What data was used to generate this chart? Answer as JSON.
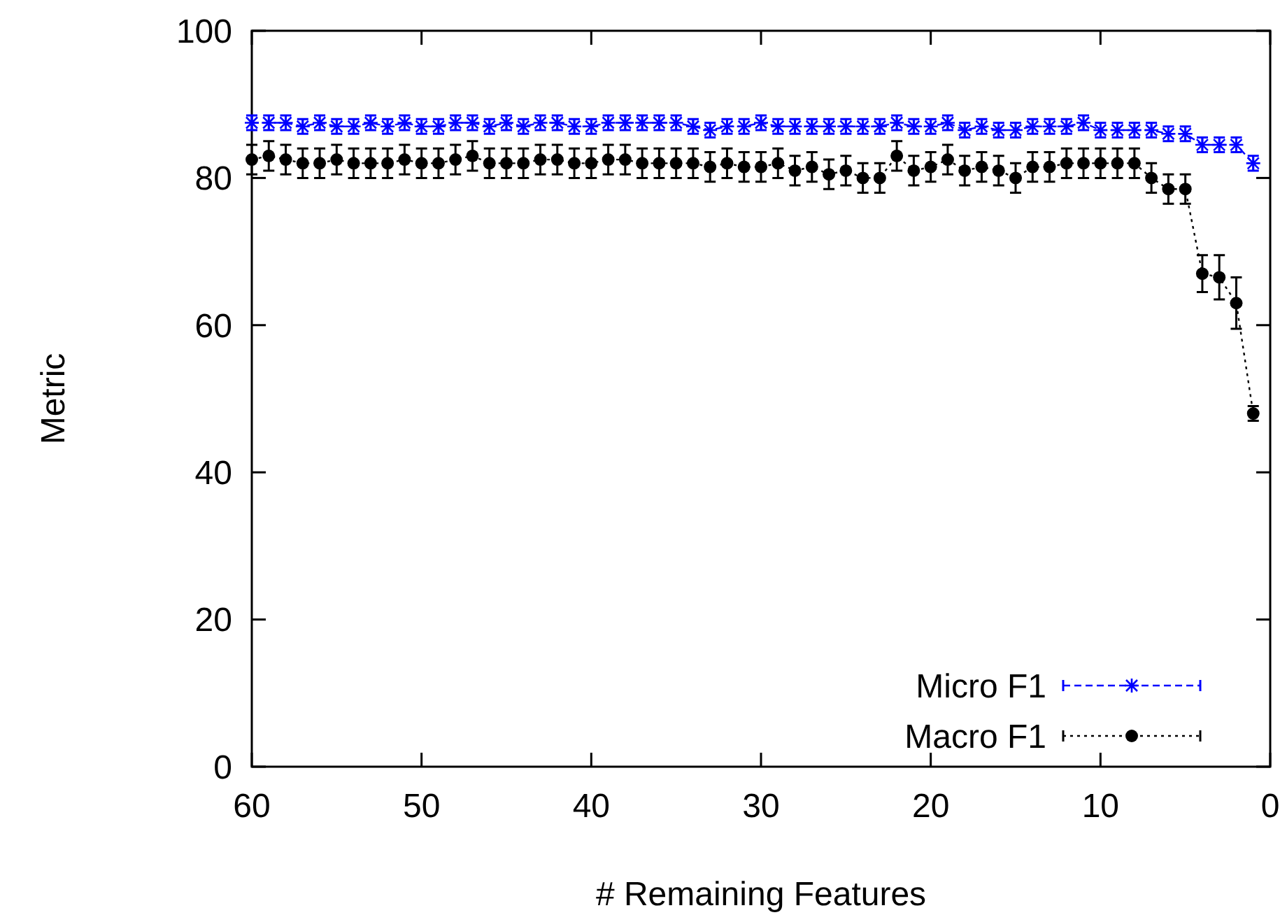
{
  "chart_data": {
    "type": "line",
    "xlabel": "# Remaining Features",
    "ylabel": "Metric",
    "x": [
      60,
      59,
      58,
      57,
      56,
      55,
      54,
      53,
      52,
      51,
      50,
      49,
      48,
      47,
      46,
      45,
      44,
      43,
      42,
      41,
      40,
      39,
      38,
      37,
      36,
      35,
      34,
      33,
      32,
      31,
      30,
      29,
      28,
      27,
      26,
      25,
      24,
      23,
      22,
      21,
      20,
      19,
      18,
      17,
      16,
      15,
      14,
      13,
      12,
      11,
      10,
      9,
      8,
      7,
      6,
      5,
      4,
      3,
      2,
      1
    ],
    "xlim": [
      60,
      0
    ],
    "xticks": [
      60,
      50,
      40,
      30,
      20,
      10,
      0
    ],
    "ylim": [
      0,
      100
    ],
    "yticks": [
      0,
      20,
      40,
      60,
      80,
      100
    ],
    "grid": false,
    "legend": "bottom right",
    "series": [
      {
        "name": "Micro F1",
        "color": "#0000ff",
        "marker": "cross",
        "line_style": "dashed",
        "values": [
          87.5,
          87.5,
          87.5,
          87,
          87.5,
          87,
          87,
          87.5,
          87,
          87.5,
          87,
          87,
          87.5,
          87.5,
          87,
          87.5,
          87,
          87.5,
          87.5,
          87,
          87,
          87.5,
          87.5,
          87.5,
          87.5,
          87.5,
          87,
          86.5,
          87,
          87,
          87.5,
          87,
          87,
          87,
          87,
          87,
          87,
          87,
          87.5,
          87,
          87,
          87.5,
          86.5,
          87,
          86.5,
          86.5,
          87,
          87,
          87,
          87.5,
          86.5,
          86.5,
          86.5,
          86.5,
          86,
          86,
          84.5,
          84.5,
          84.5,
          82
        ],
        "errors": [
          1,
          1,
          1,
          1,
          1,
          1,
          1,
          1,
          1,
          1,
          1,
          1,
          1,
          1,
          1,
          1,
          1,
          1,
          1,
          1,
          1,
          1,
          1,
          1,
          1,
          1,
          1,
          1,
          1,
          1,
          1,
          1,
          1,
          1,
          1,
          1,
          1,
          1,
          1,
          1,
          1,
          1,
          1,
          1,
          1,
          1,
          1,
          1,
          1,
          1,
          1,
          1,
          1,
          1,
          1,
          1,
          1,
          1,
          1,
          1
        ]
      },
      {
        "name": "Macro F1",
        "color": "#000000",
        "marker": "circle",
        "line_style": "dotted",
        "values": [
          82.5,
          83,
          82.5,
          82,
          82,
          82.5,
          82,
          82,
          82,
          82.5,
          82,
          82,
          82.5,
          83,
          82,
          82,
          82,
          82.5,
          82.5,
          82,
          82,
          82.5,
          82.5,
          82,
          82,
          82,
          82,
          81.5,
          82,
          81.5,
          81.5,
          82,
          81,
          81.5,
          80.5,
          81,
          80,
          80,
          83,
          81,
          81.5,
          82.5,
          81,
          81.5,
          81,
          80,
          81.5,
          81.5,
          82,
          82,
          82,
          82,
          82,
          80,
          78.5,
          78.5,
          67,
          66.5,
          63,
          48
        ],
        "errors": [
          2,
          2,
          2,
          2,
          2,
          2,
          2,
          2,
          2,
          2,
          2,
          2,
          2,
          2,
          2,
          2,
          2,
          2,
          2,
          2,
          2,
          2,
          2,
          2,
          2,
          2,
          2,
          2,
          2,
          2,
          2,
          2,
          2,
          2,
          2,
          2,
          2,
          2,
          2,
          2,
          2,
          2,
          2,
          2,
          2,
          2,
          2,
          2,
          2,
          2,
          2,
          2,
          2,
          2,
          2,
          2,
          2.5,
          3,
          3.5,
          1
        ]
      }
    ]
  }
}
